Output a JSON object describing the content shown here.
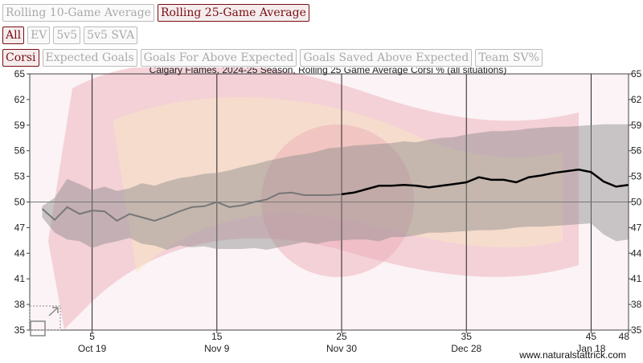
{
  "toolbar": {
    "row1": [
      {
        "label": "Rolling 10-Game Average",
        "active": false
      },
      {
        "label": "Rolling 25-Game Average",
        "active": true
      }
    ],
    "row2": [
      {
        "label": "All",
        "active": true
      },
      {
        "label": "EV",
        "active": false
      },
      {
        "label": "5v5",
        "active": false
      },
      {
        "label": "5v5 SVA",
        "active": false
      }
    ],
    "row3": [
      {
        "label": "Corsi",
        "active": true
      },
      {
        "label": "Expected Goals",
        "active": false
      },
      {
        "label": "Goals For Above Expected",
        "active": false
      },
      {
        "label": "Goals Saved Above Expected",
        "active": false
      },
      {
        "label": "Team SV%",
        "active": false
      }
    ]
  },
  "watermark": "www.naturalstattrick.com",
  "chart_data": {
    "type": "line",
    "title": "Calgary Flames, 2024-25 Season, Rolling 25 Game Average Corsi % (all situations)",
    "ylim": [
      35,
      65
    ],
    "yticks": [
      35,
      38,
      41,
      44,
      47,
      50,
      53,
      56,
      59,
      62,
      65
    ],
    "xlim": [
      0,
      48
    ],
    "xticks": [
      {
        "game": 5,
        "label": "5",
        "date": "Oct 19"
      },
      {
        "game": 15,
        "label": "15",
        "date": "Nov 9"
      },
      {
        "game": 25,
        "label": "25",
        "date": "Nov 30"
      },
      {
        "game": 35,
        "label": "35",
        "date": "Dec 28"
      },
      {
        "game": 45,
        "label": "45",
        "date": "Jan 18"
      },
      {
        "game": 48,
        "label": "48",
        "date": ""
      }
    ],
    "reference_line": 50,
    "series": [
      {
        "role": "rolling average",
        "x": [
          1,
          2,
          3,
          4,
          5,
          6,
          7,
          8,
          9,
          10,
          11,
          12,
          13,
          14,
          15,
          16,
          17,
          18,
          19,
          20,
          21,
          22,
          23,
          24,
          25,
          26,
          27,
          28,
          29,
          30,
          31,
          32,
          33,
          34,
          35,
          36,
          37,
          38,
          39,
          40,
          41,
          42,
          43,
          44,
          45,
          46,
          47,
          48
        ],
        "y": [
          49.2,
          47.9,
          49.4,
          48.6,
          49.0,
          48.9,
          47.8,
          48.6,
          48.2,
          47.8,
          48.3,
          48.9,
          49.4,
          49.5,
          50.0,
          49.4,
          49.6,
          50.0,
          50.3,
          51.0,
          51.1,
          50.8,
          50.8,
          50.8,
          50.9,
          51.1,
          51.5,
          51.9,
          51.9,
          52.0,
          51.9,
          51.7,
          51.9,
          52.1,
          52.3,
          52.9,
          52.6,
          52.6,
          52.3,
          52.9,
          53.1,
          53.4,
          53.6,
          53.8,
          53.5,
          52.4,
          51.8,
          52.0
        ]
      }
    ],
    "band": {
      "x": [
        1,
        2,
        3,
        4,
        5,
        6,
        7,
        8,
        9,
        10,
        11,
        12,
        13,
        14,
        15,
        16,
        17,
        18,
        19,
        20,
        21,
        22,
        23,
        24,
        25,
        26,
        27,
        28,
        29,
        30,
        31,
        32,
        33,
        34,
        35,
        36,
        37,
        38,
        39,
        40,
        41,
        42,
        43,
        44,
        45,
        46,
        47,
        48
      ],
      "upper": [
        49.5,
        50.5,
        52.7,
        52.1,
        51.4,
        51.8,
        51.3,
        51.6,
        52.2,
        51.9,
        52.4,
        52.8,
        53.0,
        53.3,
        53.4,
        53.7,
        54.1,
        54.4,
        54.8,
        55.1,
        55.4,
        55.6,
        55.9,
        56.3,
        56.4,
        56.6,
        56.7,
        56.8,
        56.9,
        57.1,
        57.0,
        57.3,
        57.5,
        57.6,
        57.9,
        58.1,
        58.3,
        58.3,
        58.4,
        58.6,
        58.7,
        58.8,
        58.8,
        58.9,
        59.0,
        59.1,
        59.1,
        59.1
      ],
      "lower": [
        48.2,
        46.4,
        45.6,
        45.4,
        44.6,
        45.1,
        45.4,
        45.8,
        45.1,
        44.9,
        44.4,
        44.9,
        44.7,
        44.8,
        44.5,
        44.5,
        44.5,
        44.6,
        44.4,
        44.7,
        45.0,
        45.3,
        45.1,
        45.4,
        45.5,
        45.6,
        45.6,
        45.4,
        45.9,
        45.9,
        46.1,
        46.4,
        46.4,
        46.5,
        46.6,
        46.7,
        46.7,
        46.8,
        47.0,
        47.1,
        47.1,
        47.2,
        47.3,
        47.4,
        47.5,
        46.2,
        45.4,
        45.6
      ]
    }
  }
}
